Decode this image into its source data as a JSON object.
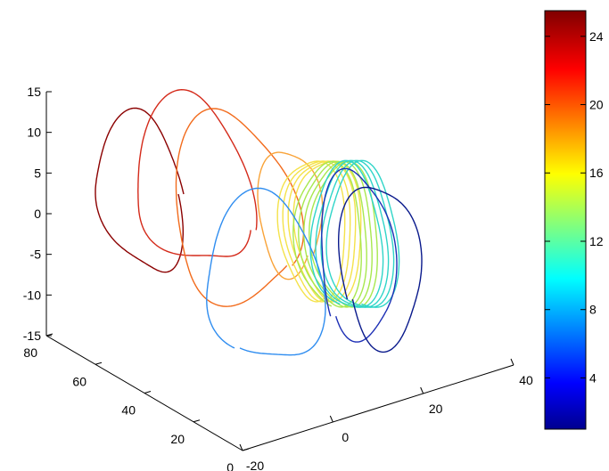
{
  "chart_data": {
    "type": "line3d",
    "title": "",
    "xlabel": "",
    "ylabel": "",
    "zlabel": "",
    "axes": {
      "z": {
        "ticks": [
          "15",
          "10",
          "5",
          "0",
          "-5",
          "-10",
          "-15"
        ],
        "lim": [
          -15,
          15
        ]
      },
      "depth": {
        "ticks": [
          "80",
          "60",
          "40",
          "20",
          "0"
        ],
        "lim": [
          0,
          80
        ]
      },
      "x": {
        "ticks": [
          "-20",
          "0",
          "20",
          "40"
        ],
        "lim": [
          -20,
          40
        ]
      }
    },
    "colorbar": {
      "ticks": [
        "24",
        "20",
        "16",
        "12",
        "8",
        "4"
      ],
      "range": [
        1,
        25.5
      ],
      "colormap": "jet"
    },
    "series": [
      {
        "value": 25.0,
        "loops": 1,
        "color": "#8b0000"
      },
      {
        "value": 22.0,
        "loops": 1,
        "color": "#d42a1a"
      },
      {
        "value": 19.5,
        "loops": 1,
        "color": "#f26b1c"
      },
      {
        "value": 17.5,
        "loops": 1,
        "color": "#f9a338"
      },
      {
        "value": 16.0,
        "loops": 4,
        "color": "#f4e24a"
      },
      {
        "value": 13.0,
        "loops": 4,
        "color": "#a8e84f"
      },
      {
        "value": 10.0,
        "loops": 4,
        "color": "#2fd5c8"
      },
      {
        "value": 7.5,
        "loops": 1,
        "color": "#2f8df0"
      },
      {
        "value": 4.0,
        "loops": 1,
        "color": "#1d2fb5"
      },
      {
        "value": 2.0,
        "loops": 1,
        "color": "#0a1a8c"
      }
    ]
  }
}
